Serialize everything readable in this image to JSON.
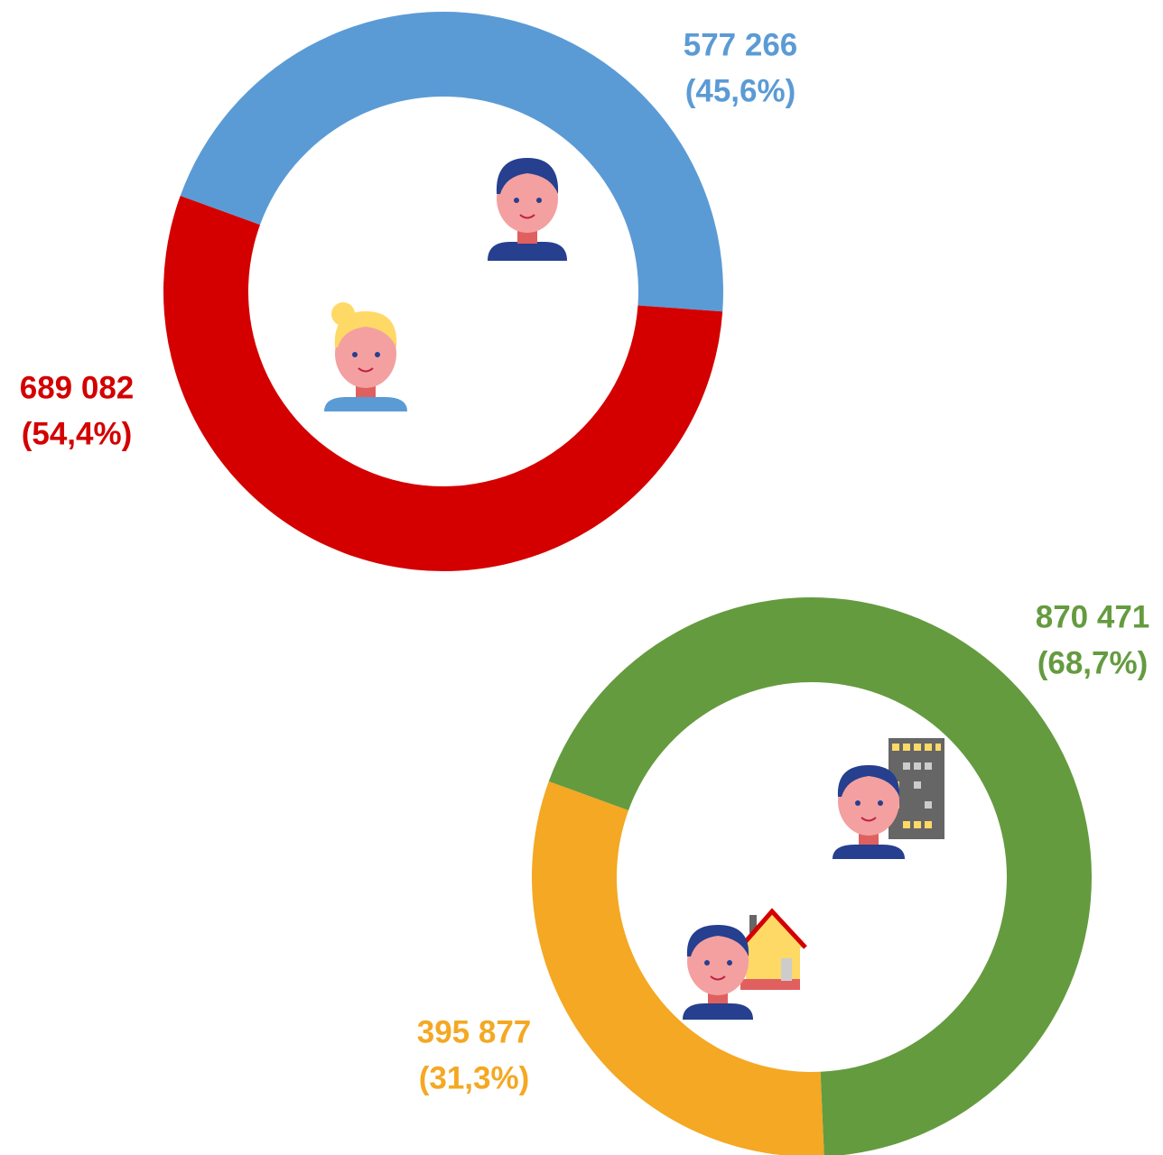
{
  "chart_data": [
    {
      "type": "donut",
      "values": [
        577266,
        689082
      ],
      "value_labels": [
        "577 266",
        "689 082"
      ],
      "percent_labels": [
        "(45,6%)",
        "(54,4%)"
      ],
      "colors": [
        "#5b9bd5",
        "#d40000"
      ]
    },
    {
      "type": "donut",
      "values": [
        870471,
        395877
      ],
      "value_labels": [
        "870 471",
        "395 877"
      ],
      "percent_labels": [
        "(68,7%)",
        "(31,3%)"
      ],
      "colors": [
        "#659b3f",
        "#f4a823"
      ]
    }
  ]
}
